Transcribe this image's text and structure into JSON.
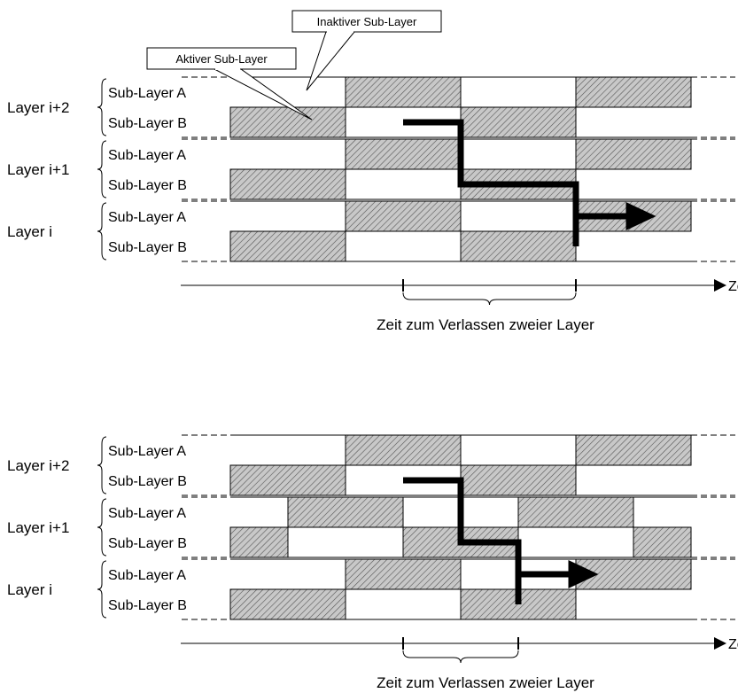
{
  "callouts": {
    "active": "Aktiver Sub-Layer",
    "inactive": "Inaktiver Sub-Layer"
  },
  "axis_label": "Zeit t",
  "span_label": "Zeit zum Verlassen zweier Layer",
  "diagrams": [
    {
      "id": "top",
      "layers": [
        {
          "label": "Layer i+2",
          "sub": [
            {
              "label": "Sub-Layer A",
              "active": [
                [
                  1,
                  2
                ],
                [
                  3,
                  4
                ]
              ]
            },
            {
              "label": "Sub-Layer B",
              "active": [
                [
                  0,
                  1
                ],
                [
                  2,
                  3
                ]
              ]
            }
          ]
        },
        {
          "label": "Layer i+1",
          "sub": [
            {
              "label": "Sub-Layer A",
              "active": [
                [
                  1,
                  2
                ],
                [
                  3,
                  4
                ]
              ]
            },
            {
              "label": "Sub-Layer B",
              "active": [
                [
                  0,
                  1
                ],
                [
                  2,
                  3
                ]
              ]
            }
          ]
        },
        {
          "label": "Layer i",
          "sub": [
            {
              "label": "Sub-Layer A",
              "active": [
                [
                  1,
                  2
                ],
                [
                  3,
                  4
                ]
              ]
            },
            {
              "label": "Sub-Layer B",
              "active": [
                [
                  0,
                  1
                ],
                [
                  2,
                  3
                ]
              ]
            }
          ]
        }
      ],
      "path": [
        [
          "i+2",
          "B",
          1.5
        ],
        [
          "i+2",
          "B",
          2
        ],
        [
          "i+1",
          "B",
          2
        ],
        [
          "i+1",
          "B",
          3
        ],
        [
          "i",
          "B",
          3
        ],
        [
          "i",
          "A",
          3.45
        ]
      ],
      "span": [
        1.5,
        3
      ]
    },
    {
      "id": "bottom",
      "layers": [
        {
          "label": "Layer i+2",
          "sub": [
            {
              "label": "Sub-Layer A",
              "active": [
                [
                  1,
                  2
                ],
                [
                  3,
                  4
                ]
              ]
            },
            {
              "label": "Sub-Layer B",
              "active": [
                [
                  0,
                  1
                ],
                [
                  2,
                  3
                ]
              ]
            }
          ]
        },
        {
          "label": "Layer i+1",
          "sub": [
            {
              "label": "Sub-Layer A",
              "active": [
                [
                  0.5,
                  1.5
                ],
                [
                  2.5,
                  3.5
                ]
              ]
            },
            {
              "label": "Sub-Layer B",
              "active": [
                [
                  0,
                  0.5
                ],
                [
                  1.5,
                  2.5
                ],
                [
                  3.5,
                  4
                ]
              ]
            }
          ]
        },
        {
          "label": "Layer i",
          "sub": [
            {
              "label": "Sub-Layer A",
              "active": [
                [
                  1,
                  2
                ],
                [
                  3,
                  4
                ]
              ]
            },
            {
              "label": "Sub-Layer B",
              "active": [
                [
                  0,
                  1
                ],
                [
                  2,
                  3
                ]
              ]
            }
          ]
        }
      ],
      "path": [
        [
          "i+2",
          "B",
          1.5
        ],
        [
          "i+2",
          "B",
          2
        ],
        [
          "i+1",
          "B",
          2
        ],
        [
          "i+1",
          "B",
          2.5
        ],
        [
          "i",
          "B",
          2.5
        ],
        [
          "i",
          "A",
          2.95
        ]
      ],
      "span": [
        1.5,
        2.5
      ]
    }
  ]
}
